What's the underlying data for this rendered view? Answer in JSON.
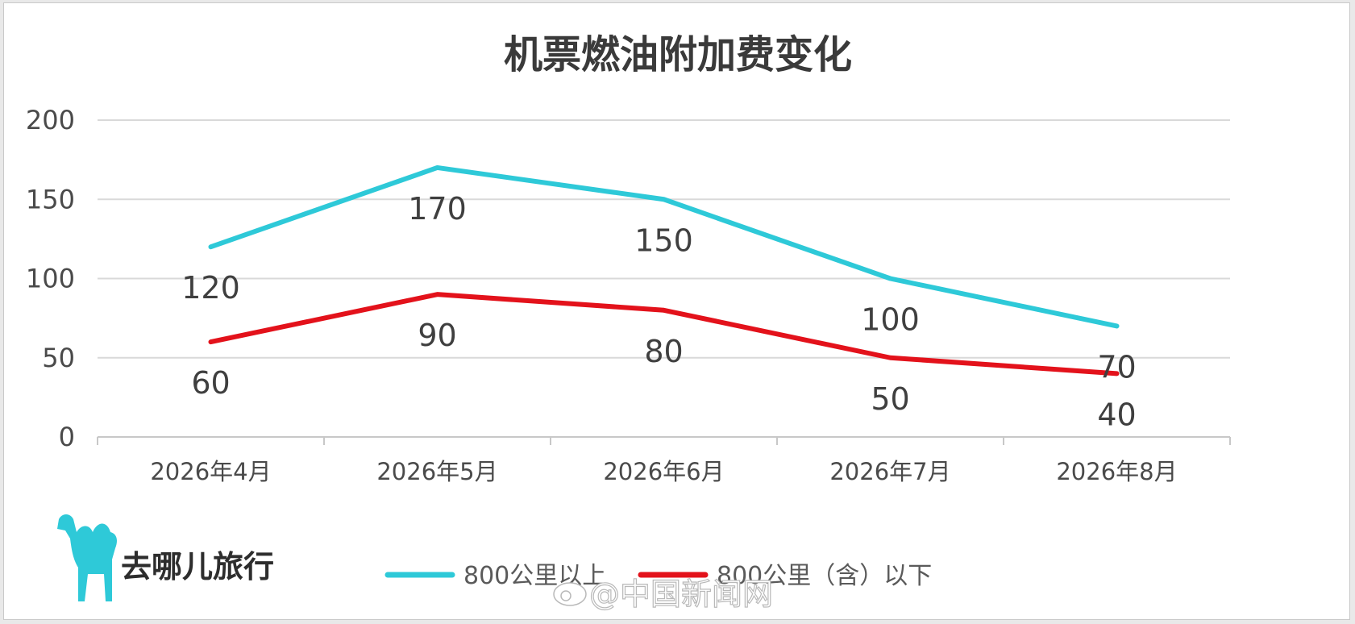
{
  "chart_data": {
    "type": "line",
    "title": "机票燃油附加费变化",
    "categories": [
      "2026年4月",
      "2026年5月",
      "2026年6月",
      "2026年7月",
      "2026年8月"
    ],
    "series": [
      {
        "name": "800公里以上",
        "values": [
          120,
          170,
          150,
          100,
          70
        ],
        "color": "#2ec9d8"
      },
      {
        "name": "800公里（含）以下",
        "values": [
          60,
          90,
          80,
          50,
          40
        ],
        "color": "#e3121b"
      }
    ],
    "yticks": [
      0,
      50,
      100,
      150,
      200
    ],
    "ylim": [
      0,
      200
    ],
    "grid": true,
    "legend_position": "bottom"
  },
  "brand": {
    "name": "去哪儿旅行",
    "icon": "camel-icon",
    "color": "#2ec9d8"
  },
  "watermark": {
    "text": "@中国新闻网",
    "icon": "weibo-icon"
  }
}
